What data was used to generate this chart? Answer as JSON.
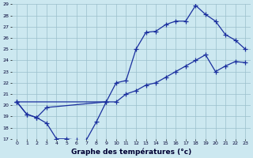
{
  "xlabel": "Graphe des températures (°c)",
  "ylim": [
    17,
    29
  ],
  "yticks": [
    17,
    18,
    19,
    20,
    21,
    22,
    23,
    24,
    25,
    26,
    27,
    28,
    29
  ],
  "bg_color": "#cce8f0",
  "line_color": "#1a2f9e",
  "grid_color": "#9bbfcc",
  "curve_a_x": [
    0,
    1,
    2,
    3,
    4,
    5,
    6,
    7,
    8,
    9
  ],
  "curve_a_y": [
    20.3,
    19.2,
    18.9,
    18.4,
    17.0,
    17.0,
    16.9,
    16.9,
    18.5,
    20.3
  ],
  "curve_b_x": [
    0,
    1,
    2,
    3,
    9,
    10,
    11,
    12,
    13,
    14,
    15,
    16,
    17,
    18,
    19,
    20,
    21,
    22,
    23
  ],
  "curve_b_y": [
    20.3,
    19.2,
    18.9,
    19.8,
    20.3,
    22.0,
    22.2,
    25.0,
    26.5,
    26.6,
    27.2,
    27.5,
    27.5,
    28.9,
    28.1,
    27.5,
    26.3,
    25.8,
    25.0
  ],
  "curve_c_x": [
    0,
    10,
    11,
    12,
    13,
    14,
    15,
    16,
    17,
    18,
    19,
    20,
    21,
    22,
    23
  ],
  "curve_c_y": [
    20.3,
    20.3,
    21.0,
    21.3,
    21.8,
    22.0,
    22.5,
    23.0,
    23.5,
    24.0,
    24.5,
    23.0,
    23.5,
    23.9,
    23.8
  ]
}
